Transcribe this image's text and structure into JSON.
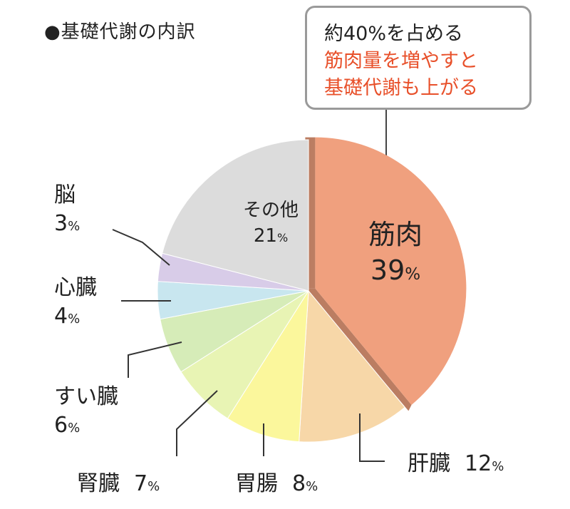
{
  "title": "●基礎代謝の内訳",
  "callout": {
    "line1": "約40%を占める",
    "line2": "筋肉量を増やすと",
    "line3": "基礎代謝も上がる"
  },
  "chart_data": {
    "type": "pie",
    "title": "●基礎代謝の内訳",
    "slices": [
      {
        "label": "筋肉",
        "value": 39,
        "display_value": "39",
        "color": "#f0a07e",
        "exploded": true
      },
      {
        "label": "肝臓",
        "value": 12,
        "display_value": "12",
        "color": "#f7d7a8"
      },
      {
        "label": "胃腸",
        "value": 8,
        "display_value": "8",
        "color": "#fbf79c"
      },
      {
        "label": "腎臓",
        "value": 7,
        "display_value": "7",
        "color": "#e8f4b4"
      },
      {
        "label": "すい臓",
        "value": 6,
        "display_value": "6",
        "color": "#d6ecb8"
      },
      {
        "label": "心臓",
        "value": 4,
        "display_value": "4",
        "color": "#c8e6ef"
      },
      {
        "label": "脳",
        "value": 3,
        "display_value": "3",
        "color": "#d8cce8"
      },
      {
        "label": "その他",
        "value": 21,
        "display_value": "21",
        "color": "#dcdcdc"
      }
    ],
    "unit": "%"
  }
}
